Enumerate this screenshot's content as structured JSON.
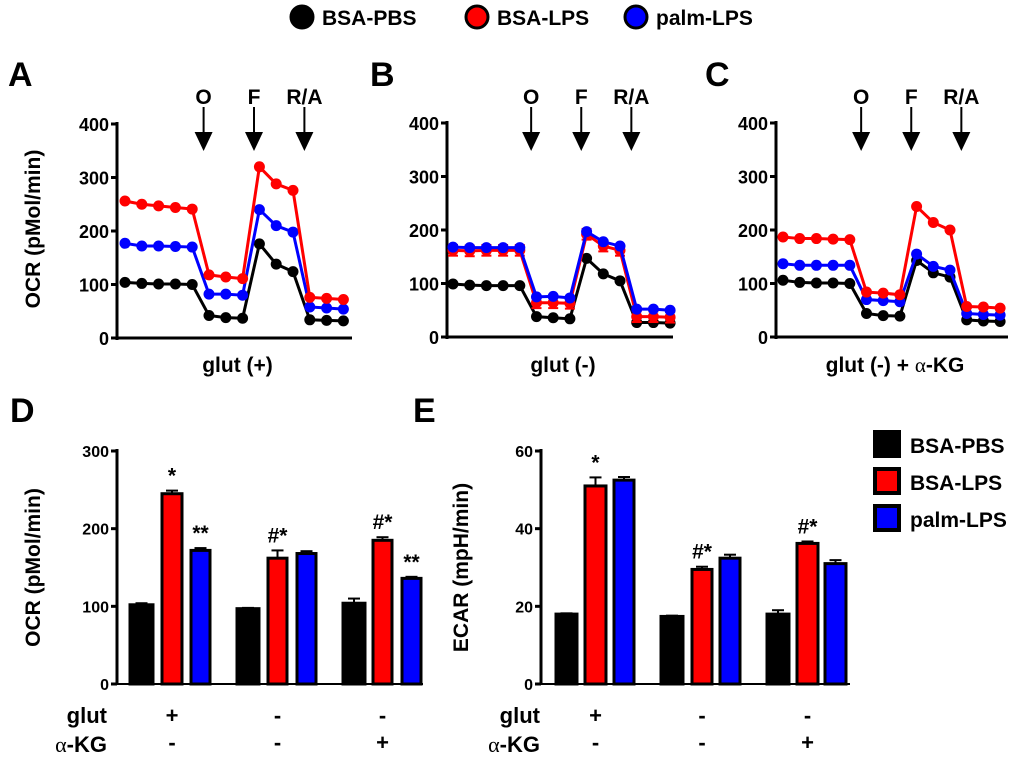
{
  "legend_top": {
    "entries": [
      {
        "name": "BSA-PBS",
        "color": "#000000"
      },
      {
        "name": "BSA-LPS",
        "color": "#ff0000"
      },
      {
        "name": "palm-LPS",
        "color": "#0000ff"
      }
    ]
  },
  "legend_right": {
    "entries": [
      {
        "name": "BSA-PBS",
        "color": "#000000"
      },
      {
        "name": "BSA-LPS",
        "color": "#ff0000"
      },
      {
        "name": "palm-LPS",
        "color": "#0000ff"
      }
    ]
  },
  "chart_data": [
    {
      "panel": "A",
      "type": "line",
      "title": "",
      "xlabel": "glut (+)",
      "ylabel": "OCR (pMol/min)",
      "ylim": [
        0,
        400
      ],
      "yticks": [
        0,
        100,
        200,
        300,
        400
      ],
      "x": [
        1,
        2,
        3,
        4,
        5,
        6,
        7,
        8,
        9,
        10,
        11,
        12,
        13,
        14
      ],
      "injections": [
        {
          "label": "O",
          "after_point": 5
        },
        {
          "label": "F",
          "after_point": 8
        },
        {
          "label": "R/A",
          "after_point": 11
        }
      ],
      "series": [
        {
          "name": "BSA-LPS",
          "color": "#ff0000",
          "values": [
            256,
            250,
            247,
            244,
            241,
            118,
            114,
            111,
            320,
            288,
            276,
            76,
            74,
            72
          ]
        },
        {
          "name": "palm-LPS",
          "color": "#0000ff",
          "values": [
            177,
            172,
            172,
            171,
            170,
            82,
            82,
            80,
            240,
            210,
            198,
            58,
            56,
            54
          ]
        },
        {
          "name": "BSA-PBS",
          "color": "#000000",
          "values": [
            104,
            102,
            101,
            101,
            100,
            42,
            38,
            37,
            176,
            138,
            124,
            34,
            33,
            32
          ]
        }
      ]
    },
    {
      "panel": "B",
      "type": "line",
      "title": "",
      "xlabel": "glut (-)",
      "ylabel": "",
      "ylim": [
        0,
        400
      ],
      "yticks": [
        0,
        100,
        200,
        300,
        400
      ],
      "x": [
        1,
        2,
        3,
        4,
        5,
        6,
        7,
        8,
        9,
        10,
        11,
        12,
        13,
        14
      ],
      "injections": [
        {
          "label": "O",
          "after_point": 5
        },
        {
          "label": "F",
          "after_point": 8
        },
        {
          "label": "R/A",
          "after_point": 11
        }
      ],
      "series": [
        {
          "name": "palm-LPS",
          "color": "#0000ff",
          "values": [
            168,
            167,
            167,
            167,
            167,
            75,
            76,
            73,
            197,
            178,
            170,
            52,
            52,
            50
          ]
        },
        {
          "name": "BSA-LPS",
          "color": "#ff0000",
          "values": [
            162,
            161,
            162,
            162,
            162,
            64,
            64,
            63,
            192,
            170,
            162,
            38,
            38,
            37
          ],
          "error": 10
        },
        {
          "name": "BSA-PBS",
          "color": "#000000",
          "values": [
            99,
            97,
            96,
            96,
            96,
            38,
            36,
            34,
            147,
            118,
            105,
            27,
            27,
            26
          ]
        }
      ]
    },
    {
      "panel": "C",
      "type": "line",
      "title": "",
      "xlabel": "glut (-) + α-KG",
      "ylabel": "",
      "ylim": [
        0,
        400
      ],
      "yticks": [
        0,
        100,
        200,
        300,
        400
      ],
      "x": [
        1,
        2,
        3,
        4,
        5,
        6,
        7,
        8,
        9,
        10,
        11,
        12,
        13,
        14
      ],
      "injections": [
        {
          "label": "O",
          "after_point": 5
        },
        {
          "label": "F",
          "after_point": 8
        },
        {
          "label": "R/A",
          "after_point": 11
        }
      ],
      "series": [
        {
          "name": "BSA-LPS",
          "color": "#ff0000",
          "values": [
            187,
            184,
            184,
            183,
            182,
            84,
            82,
            79,
            244,
            214,
            200,
            57,
            56,
            54
          ]
        },
        {
          "name": "palm-LPS",
          "color": "#0000ff",
          "values": [
            137,
            134,
            134,
            134,
            134,
            70,
            68,
            66,
            155,
            132,
            125,
            44,
            42,
            41
          ]
        },
        {
          "name": "BSA-PBS",
          "color": "#000000",
          "values": [
            106,
            102,
            101,
            101,
            100,
            44,
            40,
            39,
            143,
            120,
            112,
            32,
            30,
            29
          ]
        }
      ]
    },
    {
      "panel": "D",
      "type": "bar",
      "title": "",
      "ylabel": "OCR (pMol/min)",
      "ylim": [
        0,
        300
      ],
      "yticks": [
        0,
        100,
        200,
        300
      ],
      "row_labels": [
        "glut",
        "α-KG"
      ],
      "categories": [
        {
          "glut": "+",
          "akg": "-"
        },
        {
          "glut": "-",
          "akg": "-"
        },
        {
          "glut": "-",
          "akg": "+"
        }
      ],
      "series": [
        {
          "name": "BSA-PBS",
          "color": "#000000",
          "values": [
            102,
            97,
            104
          ],
          "errors": [
            2,
            1,
            6
          ],
          "annotations": [
            "",
            "",
            ""
          ]
        },
        {
          "name": "BSA-LPS",
          "color": "#ff0000",
          "values": [
            245,
            162,
            185
          ],
          "errors": [
            4,
            10,
            4
          ],
          "annotations": [
            "*",
            "#*",
            "#*"
          ]
        },
        {
          "name": "palm-LPS",
          "color": "#0000ff",
          "values": [
            172,
            168,
            136
          ],
          "errors": [
            3,
            3,
            2
          ],
          "annotations": [
            "**",
            "",
            "**"
          ]
        }
      ]
    },
    {
      "panel": "E",
      "type": "bar",
      "title": "",
      "ylabel": "ECAR (mpH/min)",
      "ylim": [
        0,
        60
      ],
      "yticks": [
        0,
        20,
        40,
        60
      ],
      "row_labels": [
        "glut",
        "α-KG"
      ],
      "categories": [
        {
          "glut": "+",
          "akg": "-"
        },
        {
          "glut": "-",
          "akg": "-"
        },
        {
          "glut": "-",
          "akg": "+"
        }
      ],
      "series": [
        {
          "name": "BSA-PBS",
          "color": "#000000",
          "values": [
            18,
            17.4,
            18
          ],
          "errors": [
            0.2,
            0.2,
            1.0
          ],
          "annotations": [
            "",
            "",
            ""
          ]
        },
        {
          "name": "BSA-LPS",
          "color": "#ff0000",
          "values": [
            51,
            29.5,
            36.2
          ],
          "errors": [
            2.2,
            0.7,
            0.5
          ],
          "annotations": [
            "*",
            "#*",
            "#*"
          ]
        },
        {
          "name": "palm-LPS",
          "color": "#0000ff",
          "values": [
            52.5,
            32.4,
            31
          ],
          "errors": [
            0.8,
            0.9,
            0.9
          ],
          "annotations": [
            "",
            "",
            ""
          ]
        }
      ]
    }
  ]
}
